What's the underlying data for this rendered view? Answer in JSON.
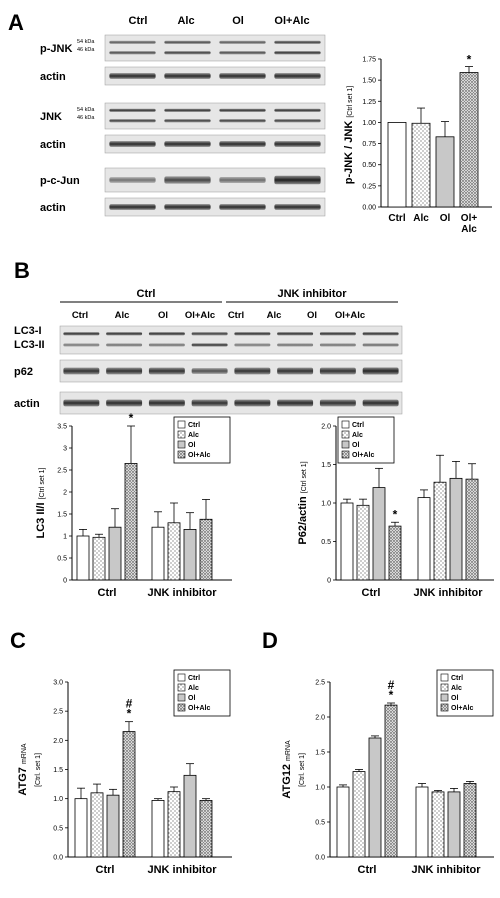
{
  "panels": {
    "A": "A",
    "B": "B",
    "C": "C",
    "D": "D"
  },
  "panel_a": {
    "lane_labels": [
      "Ctrl",
      "Alc",
      "Ol",
      "Ol+Alc"
    ],
    "blots": [
      {
        "label": "p-JNK",
        "size_labels": [
          "54 kDa",
          "46 kDa"
        ]
      },
      {
        "label": "actin",
        "size_labels": []
      },
      {
        "label": "JNK",
        "size_labels": [
          "54 kDa",
          "46 kDa"
        ]
      },
      {
        "label": "actin",
        "size_labels": []
      },
      {
        "label": "p-c-Jun",
        "size_labels": []
      },
      {
        "label": "actin",
        "size_labels": []
      }
    ]
  },
  "panel_b": {
    "group_labels": [
      "Ctrl",
      "JNK inhibitor"
    ],
    "lane_labels": [
      "Ctrl",
      "Alc",
      "Ol",
      "Ol+Alc",
      "Ctrl",
      "Alc",
      "Ol",
      "Ol+Alc"
    ],
    "blots": [
      {
        "label": "LC3-I"
      },
      {
        "label": "LC3-II"
      },
      {
        "label": "p62"
      },
      {
        "label": "actin"
      }
    ]
  },
  "chart_data": [
    {
      "id": "A",
      "type": "bar",
      "categories": [
        "Ctrl",
        "Alc",
        "Ol",
        "Ol+\nAlc"
      ],
      "values": [
        1.0,
        0.99,
        0.83,
        1.59
      ],
      "errors": [
        0,
        0.18,
        0.18,
        0.07
      ],
      "patterns": [
        "white",
        "dots",
        "gray",
        "dense"
      ],
      "annotations": [
        "",
        "",
        "",
        "*"
      ],
      "ylabel": "p-JNK / JNK",
      "ylabel_small": "[Ctrl set 1]",
      "ylim": [
        0,
        1.75
      ],
      "yticks": [
        "0.00",
        "0.25",
        "0.50",
        "0.75",
        "1.00",
        "1.25",
        "1.50",
        "1.75"
      ]
    },
    {
      "id": "B-LC3",
      "type": "bar",
      "groups": [
        "Ctrl",
        "JNK inhibitor"
      ],
      "series": [
        {
          "name": "Ctrl",
          "values": [
            1.0,
            1.2
          ],
          "errors": [
            0.15,
            0.35
          ]
        },
        {
          "name": "Alc",
          "values": [
            0.97,
            1.3
          ],
          "errors": [
            0.07,
            0.45
          ]
        },
        {
          "name": "Ol",
          "values": [
            1.2,
            1.15
          ],
          "errors": [
            0.42,
            0.38
          ]
        },
        {
          "name": "Ol+Alc",
          "values": [
            2.65,
            1.38
          ],
          "errors": [
            0.85,
            0.45
          ]
        }
      ],
      "annotations": [
        [
          "",
          "",
          "",
          "*"
        ],
        [
          "",
          "",
          "",
          ""
        ]
      ],
      "ylabel": "LC3 II/I",
      "ylabel_small": "[Ctrl set 1]",
      "ylim": [
        0,
        3.5
      ],
      "yticks": [
        "0",
        "0.5",
        "1",
        "1.5",
        "2",
        "2.5",
        "3",
        "3.5"
      ]
    },
    {
      "id": "B-p62",
      "type": "bar",
      "groups": [
        "Ctrl",
        "JNK inhibitor"
      ],
      "series": [
        {
          "name": "Ctrl",
          "values": [
            1.0,
            1.07
          ],
          "errors": [
            0.05,
            0.1
          ]
        },
        {
          "name": "Alc",
          "values": [
            0.97,
            1.27
          ],
          "errors": [
            0.08,
            0.35
          ]
        },
        {
          "name": "Ol",
          "values": [
            1.2,
            1.32
          ],
          "errors": [
            0.25,
            0.22
          ]
        },
        {
          "name": "Ol+Alc",
          "values": [
            0.7,
            1.31
          ],
          "errors": [
            0.05,
            0.2
          ]
        }
      ],
      "annotations": [
        [
          "",
          "",
          "",
          "*"
        ],
        [
          "",
          "",
          "",
          ""
        ]
      ],
      "ylabel": "P62/actin",
      "ylabel_small": "[Ctrl set 1]",
      "ylim": [
        0,
        2.0
      ],
      "yticks": [
        "0",
        "0.5",
        "1.0",
        "1.5",
        "2.0"
      ]
    },
    {
      "id": "C",
      "type": "bar",
      "groups": [
        "Ctrl",
        "JNK inhibitor"
      ],
      "series": [
        {
          "name": "Ctrl",
          "values": [
            1.0,
            0.97
          ],
          "errors": [
            0.18,
            0.03
          ]
        },
        {
          "name": "Alc",
          "values": [
            1.1,
            1.12
          ],
          "errors": [
            0.15,
            0.08
          ]
        },
        {
          "name": "Ol",
          "values": [
            1.06,
            1.4
          ],
          "errors": [
            0.1,
            0.2
          ]
        },
        {
          "name": "Ol+Alc",
          "values": [
            2.15,
            0.97
          ],
          "errors": [
            0.17,
            0.03
          ]
        }
      ],
      "annotations": [
        [
          "",
          "",
          "",
          "#\n*"
        ],
        [
          "",
          "",
          "",
          ""
        ]
      ],
      "ylabel": "ATG7",
      "ylabel_small": "mRNA",
      "ylabel_small2": "[Ctrl. set 1]",
      "ylim": [
        0,
        3.0
      ],
      "yticks": [
        "0.0",
        "0.5",
        "1.0",
        "1.5",
        "2.0",
        "2.5",
        "3.0"
      ]
    },
    {
      "id": "D",
      "type": "bar",
      "groups": [
        "Ctrl",
        "JNK inhibitor"
      ],
      "series": [
        {
          "name": "Ctrl",
          "values": [
            1.0,
            1.0
          ],
          "errors": [
            0.03,
            0.05
          ]
        },
        {
          "name": "Alc",
          "values": [
            1.22,
            0.93
          ],
          "errors": [
            0.03,
            0.02
          ]
        },
        {
          "name": "Ol",
          "values": [
            1.7,
            0.93
          ],
          "errors": [
            0.03,
            0.05
          ]
        },
        {
          "name": "Ol+Alc",
          "values": [
            2.17,
            1.05
          ],
          "errors": [
            0.03,
            0.03
          ]
        }
      ],
      "annotations": [
        [
          "",
          "",
          "",
          "#\n*"
        ],
        [
          "",
          "",
          "",
          ""
        ]
      ],
      "ylabel": "ATG12",
      "ylabel_small": "mRNA",
      "ylabel_small2": "[Ctrl. set 1]",
      "ylim": [
        0,
        2.5
      ],
      "yticks": [
        "0.0",
        "0.5",
        "1.0",
        "1.5",
        "2.0",
        "2.5"
      ]
    }
  ],
  "legend_entries": [
    "Ctrl",
    "Alc",
    "Ol",
    "Ol+Alc"
  ]
}
